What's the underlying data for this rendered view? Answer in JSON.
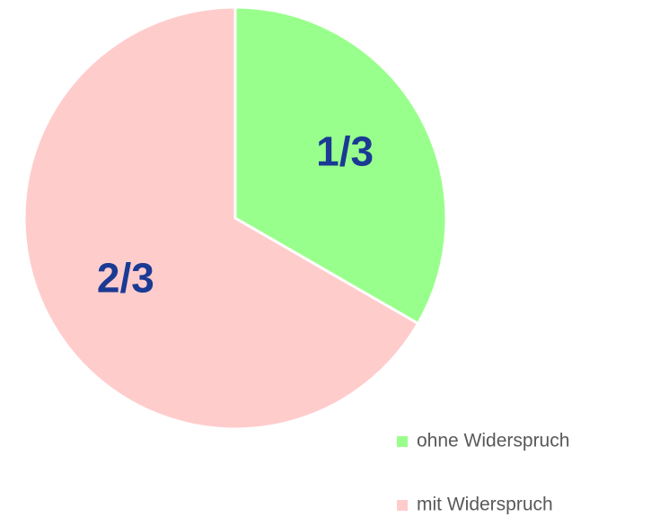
{
  "chart_data": {
    "type": "pie",
    "categories": [
      "ohne Widerspruch",
      "mit Widerspruch"
    ],
    "values": [
      0.3333,
      0.6667
    ],
    "value_labels": [
      "1/3",
      "2/3"
    ],
    "colors": [
      "#99ff8c",
      "#ffcccc"
    ],
    "label_color": "#1a3a94",
    "legend": "bottom-right"
  }
}
